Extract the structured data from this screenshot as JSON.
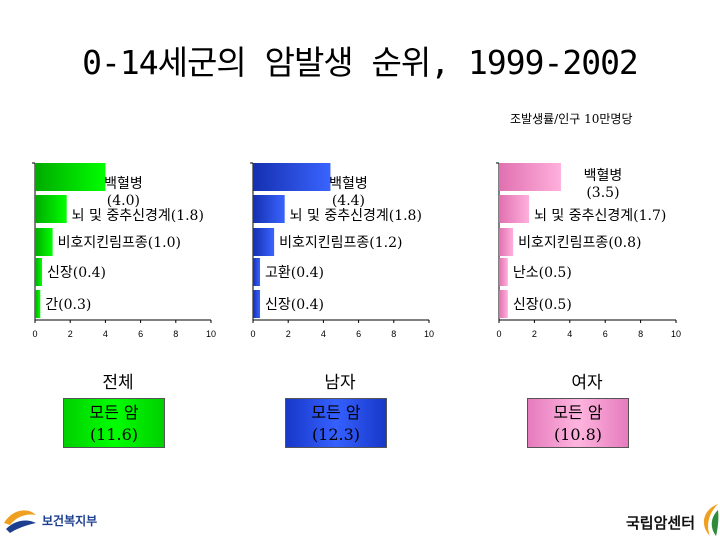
{
  "title": "0-14세군의 암발생 순위, 1999-2002",
  "unit_note": "조발생률/인구 10만명당",
  "chart_data": [
    {
      "type": "bar",
      "panel": "전체",
      "color": "#00dd00",
      "xlim": [
        0,
        10
      ],
      "xticks": [
        "0",
        "2",
        "4",
        "6",
        "8",
        "10"
      ],
      "bars": [
        {
          "label": "백혈병\n(4.0)",
          "value": 4.0
        },
        {
          "label": "뇌 및 중추신경계(1.8)",
          "value": 1.8
        },
        {
          "label": "비호지킨림프종(1.0)",
          "value": 1.0
        },
        {
          "label": "신장(0.4)",
          "value": 0.4
        },
        {
          "label": "간(0.3)",
          "value": 0.3
        }
      ]
    },
    {
      "type": "bar",
      "panel": "남자",
      "color": "#2447e0",
      "xlim": [
        0,
        10
      ],
      "xticks": [
        "0",
        "2",
        "4",
        "6",
        "8",
        "10"
      ],
      "bars": [
        {
          "label": "백혈병\n(4.4)",
          "value": 4.4
        },
        {
          "label": "뇌 및 중추신경계(1.8)",
          "value": 1.8
        },
        {
          "label": "비호지킨림프종(1.2)",
          "value": 1.2
        },
        {
          "label": "고환(0.4)",
          "value": 0.4
        },
        {
          "label": "신장(0.4)",
          "value": 0.4
        }
      ]
    },
    {
      "type": "bar",
      "panel": "여자",
      "color": "#f28ec8",
      "xlim": [
        0,
        10
      ],
      "xticks": [
        "0",
        "2",
        "4",
        "6",
        "8",
        "10"
      ],
      "bars": [
        {
          "label": "백혈병\n(3.5)",
          "value": 3.5
        },
        {
          "label": "뇌 및 중추신경계(1.7)",
          "value": 1.7
        },
        {
          "label": "비호지킨림프종(0.8)",
          "value": 0.8
        },
        {
          "label": "난소(0.5)",
          "value": 0.5
        },
        {
          "label": "신장(0.5)",
          "value": 0.5
        }
      ]
    }
  ],
  "panels": [
    {
      "title": "전체",
      "total_line1": "모든 암",
      "total_line2": "(11.6)",
      "color": "#00ee00"
    },
    {
      "title": "남자",
      "total_line1": "모든 암",
      "total_line2": "(12.3)",
      "color": "#2452e6"
    },
    {
      "title": "여자",
      "total_line1": "모든 암",
      "total_line2": "(10.8)",
      "color": "#f59ad1"
    }
  ],
  "logos": {
    "left": "보건복지부",
    "right": "국립암센터"
  }
}
